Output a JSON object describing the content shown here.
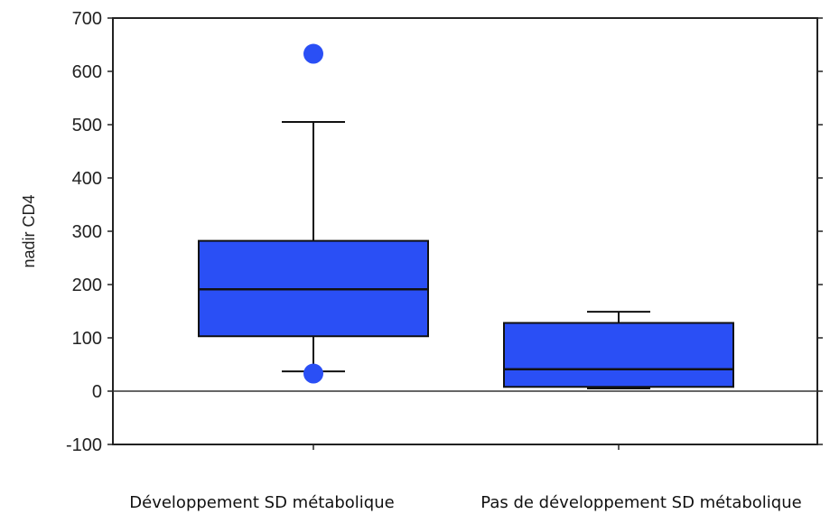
{
  "chart_data": {
    "type": "box",
    "ylabel": "nadir CD4",
    "ylim": [
      -100,
      700
    ],
    "yticks": [
      -100,
      0,
      100,
      200,
      300,
      400,
      500,
      600,
      700
    ],
    "grid": false,
    "zero_line": true,
    "box_color": "#2a4ff5",
    "categories": [
      "Développement SD métabolique",
      "Pas de développement SD métabolique"
    ],
    "boxes": [
      {
        "whisker_low": 37,
        "q1": 103,
        "median": 191,
        "q3": 282,
        "whisker_high": 505,
        "outliers": [
          633,
          33
        ]
      },
      {
        "whisker_low": 5,
        "q1": 8,
        "median": 41,
        "q3": 128,
        "whisker_high": 149,
        "outliers": []
      }
    ]
  }
}
